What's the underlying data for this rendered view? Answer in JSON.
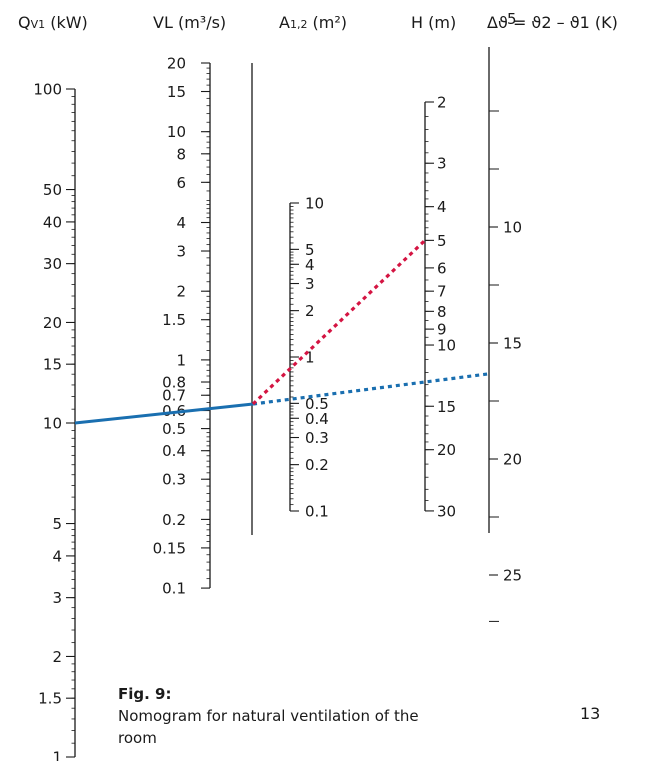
{
  "chart_data": {
    "type": "nomogram",
    "title": "",
    "scales": [
      {
        "id": "qv1",
        "label": "Qv1 (kW)",
        "label_main": "Q",
        "label_sub": "V1",
        "label_unit": " (kW)",
        "scale": "log",
        "range": [
          1,
          100
        ],
        "ticks": [
          100,
          50,
          40,
          30,
          20,
          15,
          10,
          5,
          4,
          3,
          2,
          1.5,
          1
        ],
        "tick_labels": [
          "100",
          "50",
          "40",
          "30",
          "20",
          "15",
          "10",
          "5",
          "4",
          "3",
          "2",
          "1.5",
          "1"
        ]
      },
      {
        "id": "vl",
        "label": "VL (m³/s)",
        "scale": "log",
        "range": [
          0.1,
          20
        ],
        "ticks": [
          20,
          15,
          10,
          8,
          6,
          4,
          3,
          2,
          1.5,
          1,
          0.8,
          0.7,
          0.6,
          0.5,
          0.4,
          0.3,
          0.2,
          0.15,
          0.1
        ],
        "tick_labels": [
          "20",
          "15",
          "10",
          "8",
          "6",
          "4",
          "3",
          "2",
          "1.5",
          "1",
          "0.8",
          "0.7",
          "0.6",
          "0.5",
          "0.4",
          "0.3",
          "0.2",
          "0.15",
          "0.1"
        ]
      },
      {
        "id": "pivot",
        "label": "",
        "scale": "none"
      },
      {
        "id": "a12",
        "label": "A1,2 (m²)",
        "label_main": "A",
        "label_sub": "1,2",
        "label_unit": " (m²)",
        "scale": "log",
        "range": [
          0.1,
          10
        ],
        "ticks": [
          10,
          5,
          4,
          3,
          2,
          1,
          0.5,
          0.4,
          0.3,
          0.2,
          0.1
        ],
        "tick_labels": [
          "10",
          "5",
          "4",
          "3",
          "2",
          "1",
          "0.5",
          "0.4",
          "0.3",
          "0.2",
          "0.1"
        ]
      },
      {
        "id": "h",
        "label": "H (m)",
        "scale": "log-reversed",
        "range": [
          2,
          30
        ],
        "ticks": [
          2,
          3,
          4,
          5,
          6,
          7,
          8,
          9,
          10,
          15,
          20,
          30
        ],
        "tick_labels": [
          "2",
          "3",
          "4",
          "5",
          "6",
          "7",
          "8",
          "9",
          "10",
          "15",
          "20",
          "30"
        ]
      },
      {
        "id": "dtheta",
        "label": "Δϑ = ϑ2 – ϑ1 (K)",
        "label_overprint": "5",
        "scale": "linear",
        "ticks": [
          10,
          15,
          20,
          25
        ],
        "tick_labels": [
          "10",
          "15",
          "20",
          "25"
        ]
      }
    ],
    "example_lines": [
      {
        "name": "",
        "color": "#1a6fb0",
        "style": "solid",
        "path": [
          "Qv1 = 10 kW",
          "VL ≈ 0.62 m³/s",
          "pivot"
        ]
      },
      {
        "name": "",
        "color": "#1a6fb0",
        "style": "dotted",
        "path": [
          "pivot",
          "A1,2 ≈ 0.52 m²",
          "H ≈ 12.5 m",
          "Δϑ ≈ 16.5 K"
        ]
      },
      {
        "name": "",
        "color": "#d41442",
        "style": "dotted",
        "path": [
          "pivot",
          "A1,2 ≈ 0.85 m²",
          "H = 5 m"
        ]
      }
    ]
  },
  "caption": {
    "figure": "Fig. 9:",
    "text": "Nomogram for natural ventilation of the room"
  },
  "page_number": "13"
}
